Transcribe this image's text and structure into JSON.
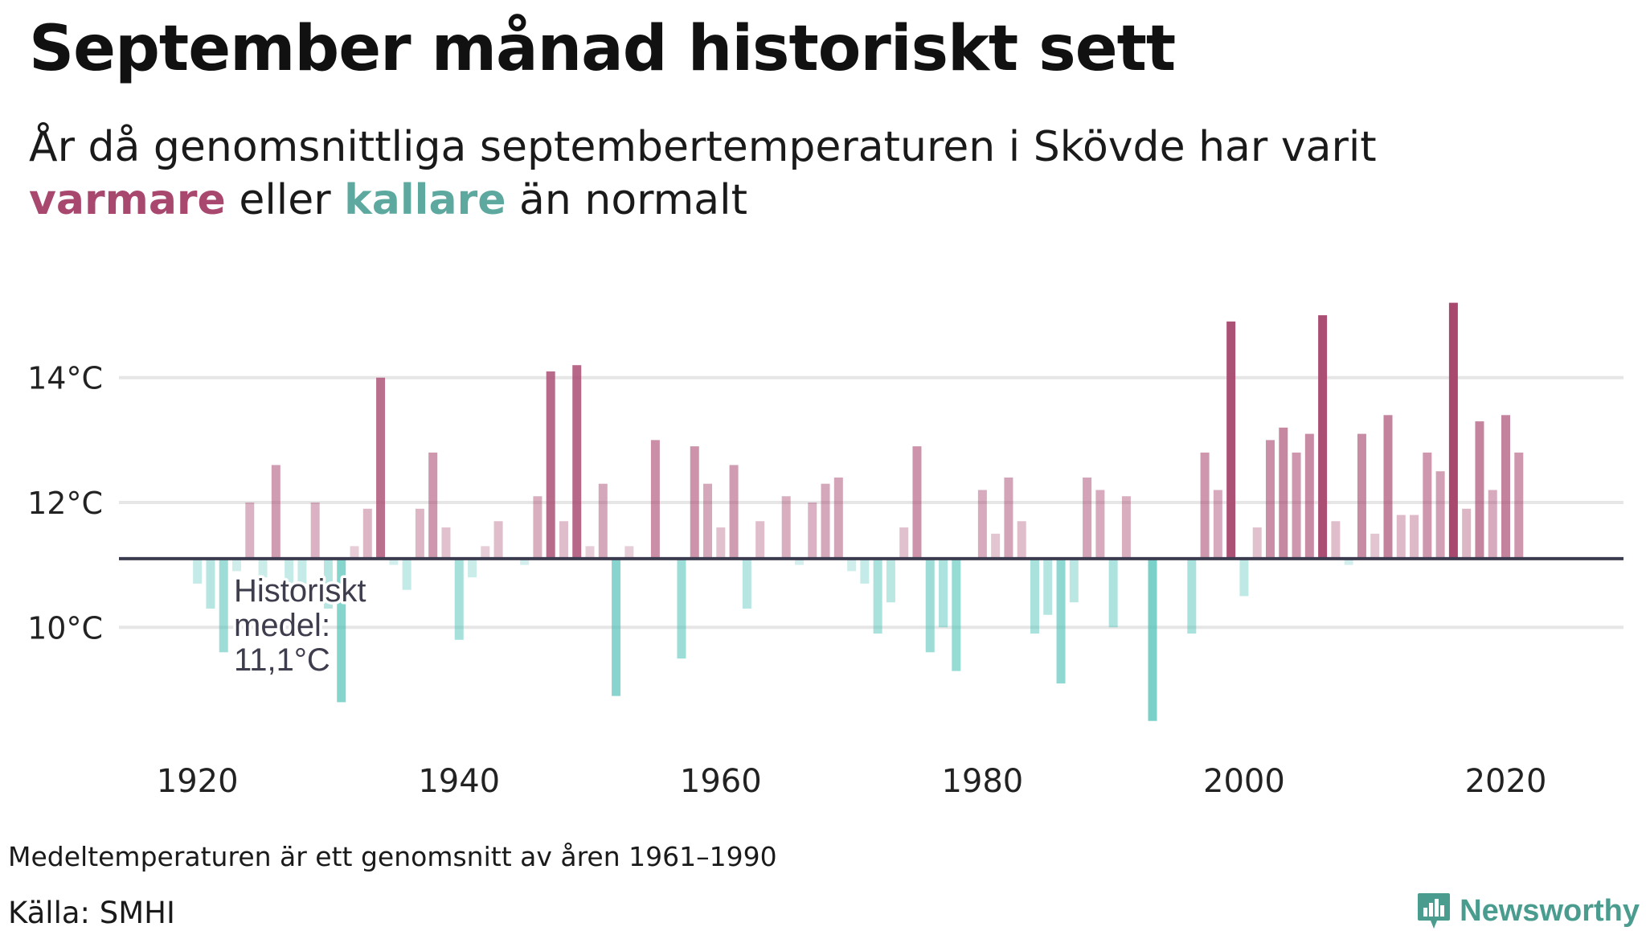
{
  "title": "September månad historiskt sett",
  "subtitle": {
    "part1": "År då genomsnittliga septembertemperaturen i Skövde har varit ",
    "warmer": "varmare",
    "part2": " eller ",
    "colder": "kallare",
    "part3": " än normalt"
  },
  "footnote": "Medeltemperaturen är ett genomsnitt av åren 1961–1990",
  "source": "Källa: SMHI",
  "brand": "Newsworthy",
  "colors": {
    "warm": "#a8486f",
    "cold": "#4cc1b6",
    "baseline": "#3b3b4f",
    "grid": "#e6e6e6"
  },
  "chart_data": {
    "type": "bar",
    "title": "September månad historiskt sett",
    "xlabel": "",
    "ylabel": "",
    "baseline": 11.1,
    "baseline_label": [
      "Historiskt",
      "medel:",
      "11,1°C"
    ],
    "ylim": [
      8.2,
      15.8
    ],
    "y_ticks": [
      10,
      12,
      14
    ],
    "y_tick_labels": [
      "10°C",
      "12°C",
      "14°C"
    ],
    "x_ticks": [
      1920,
      1940,
      1960,
      1980,
      2000,
      2020
    ],
    "x_tick_labels": [
      "1920",
      "1940",
      "1960",
      "1980",
      "2000",
      "2020"
    ],
    "xlim": [
      1914,
      2029
    ],
    "grid": true,
    "years": [
      1920,
      1921,
      1922,
      1923,
      1924,
      1925,
      1926,
      1927,
      1928,
      1929,
      1930,
      1931,
      1932,
      1933,
      1934,
      1935,
      1936,
      1937,
      1938,
      1939,
      1940,
      1941,
      1942,
      1943,
      1944,
      1945,
      1946,
      1947,
      1948,
      1949,
      1950,
      1951,
      1952,
      1953,
      1954,
      1955,
      1956,
      1957,
      1958,
      1959,
      1960,
      1961,
      1962,
      1963,
      1964,
      1965,
      1966,
      1967,
      1968,
      1969,
      1970,
      1971,
      1972,
      1973,
      1974,
      1975,
      1976,
      1977,
      1978,
      1979,
      1980,
      1981,
      1982,
      1983,
      1984,
      1985,
      1986,
      1987,
      1988,
      1989,
      1990,
      1991,
      1992,
      1993,
      1994,
      1995,
      1996,
      1997,
      1998,
      1999,
      2000,
      2001,
      2002,
      2003,
      2004,
      2005,
      2006,
      2007,
      2008,
      2009,
      2010,
      2011,
      2012,
      2013,
      2014,
      2015,
      2016,
      2017,
      2018,
      2019,
      2020,
      2021
    ],
    "values": [
      10.7,
      10.3,
      9.6,
      10.9,
      12.0,
      10.8,
      12.6,
      10.7,
      10.7,
      12.0,
      10.3,
      8.8,
      11.3,
      11.9,
      14.0,
      11.0,
      10.6,
      11.9,
      12.8,
      11.6,
      9.8,
      10.8,
      11.3,
      11.7,
      11.1,
      11.0,
      12.1,
      14.1,
      11.7,
      14.2,
      11.3,
      12.3,
      8.9,
      11.3,
      11.1,
      13.0,
      11.1,
      9.5,
      12.9,
      12.3,
      11.6,
      12.6,
      10.3,
      11.7,
      11.1,
      12.1,
      11.0,
      12.0,
      12.3,
      12.4,
      10.9,
      10.7,
      9.9,
      10.4,
      11.6,
      12.9,
      9.6,
      10.0,
      9.3,
      11.1,
      12.2,
      11.5,
      12.4,
      11.7,
      9.9,
      10.2,
      9.1,
      10.4,
      12.4,
      12.2,
      10.0,
      12.1,
      11.1,
      8.5,
      11.1,
      11.1,
      9.9,
      12.8,
      12.2,
      14.9,
      10.5,
      11.6,
      13.0,
      13.2,
      12.8,
      13.1,
      15.0,
      11.7,
      11.0,
      13.1,
      11.5,
      13.4,
      11.8,
      11.8,
      12.8,
      12.5,
      15.2,
      11.9,
      13.3,
      12.2,
      13.4,
      12.8
    ]
  }
}
